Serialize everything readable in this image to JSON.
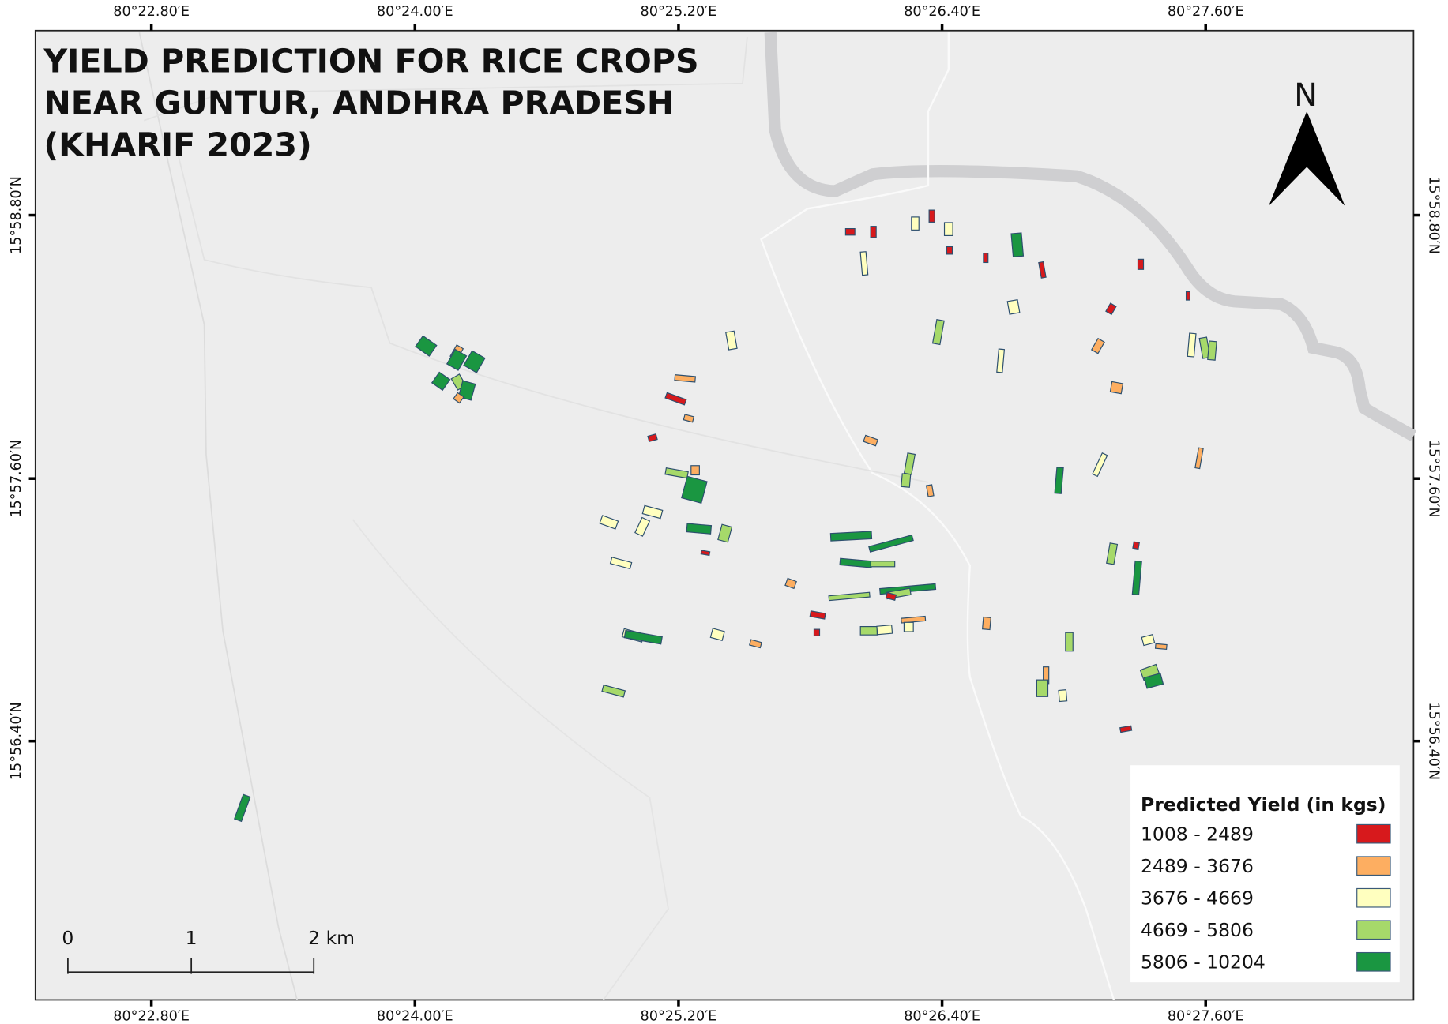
{
  "title": [
    "YIELD PREDICTION FOR RICE CROPS",
    "NEAR GUNTUR, ANDHRA PRADESH",
    "(KHARIF 2023)"
  ],
  "north_arrow": "N",
  "longitudes": [
    "80°22.80′E",
    "80°24.00′E",
    "80°25.20′E",
    "80°26.40′E",
    "80°27.60′E"
  ],
  "latitudes": [
    "15°58.80′N",
    "15°57.60′N",
    "15°56.40′N"
  ],
  "legend": {
    "title": "Predicted Yield (in kgs)",
    "classes": [
      {
        "label": "1008 - 2489",
        "color": "#d7191c"
      },
      {
        "label": "2489 - 3676",
        "color": "#fdae61"
      },
      {
        "label": "3676 - 4669",
        "color": "#ffffbf"
      },
      {
        "label": "4669 - 5806",
        "color": "#a6d96a"
      },
      {
        "label": "5806 - 10204",
        "color": "#1a9641"
      }
    ]
  },
  "scale_bar": {
    "labels": [
      "0",
      "1",
      "2 km"
    ]
  }
}
